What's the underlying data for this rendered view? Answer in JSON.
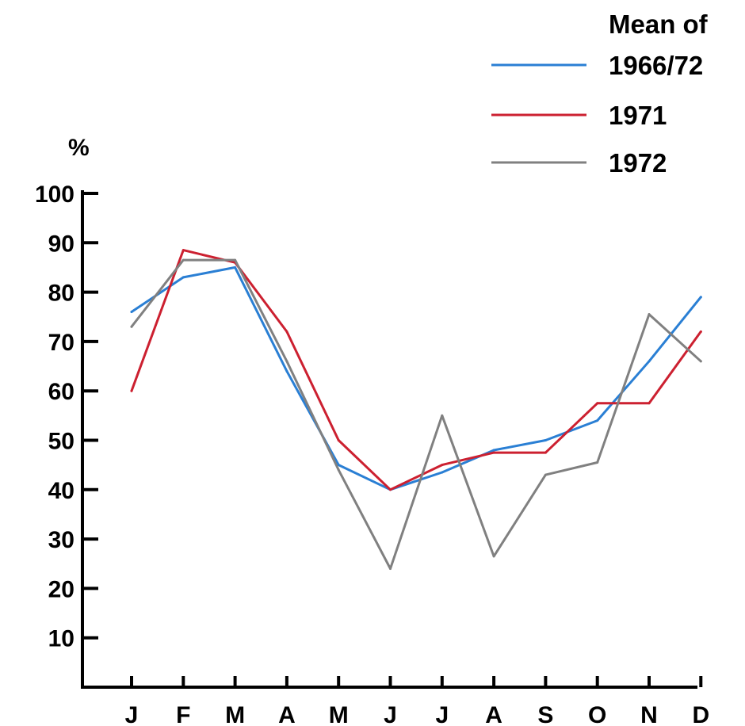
{
  "chart_data": {
    "type": "line",
    "title": "",
    "xlabel": "",
    "ylabel": "%",
    "legend_title": "Mean of",
    "legend_position": "top-right",
    "grid": false,
    "categories": [
      "J",
      "F",
      "M",
      "A",
      "M",
      "J",
      "J",
      "A",
      "S",
      "O",
      "N",
      "D"
    ],
    "ylim": [
      0,
      100
    ],
    "yticks": [
      10,
      20,
      30,
      40,
      50,
      60,
      70,
      80,
      90,
      100
    ],
    "series": [
      {
        "name": "1966/72",
        "color": "#2a7fd4",
        "values": [
          76,
          83,
          85,
          64,
          45,
          40,
          43.5,
          48,
          50,
          54,
          66,
          79
        ]
      },
      {
        "name": "1971",
        "color": "#cc2030",
        "values": [
          60,
          88.5,
          86,
          72,
          50,
          40,
          45,
          47.5,
          47.5,
          57.5,
          57.5,
          72
        ]
      },
      {
        "name": "1972",
        "color": "#808080",
        "values": [
          73,
          86.5,
          86.5,
          66,
          44,
          24,
          55,
          26.5,
          43,
          45.5,
          75.5,
          66
        ]
      }
    ]
  }
}
